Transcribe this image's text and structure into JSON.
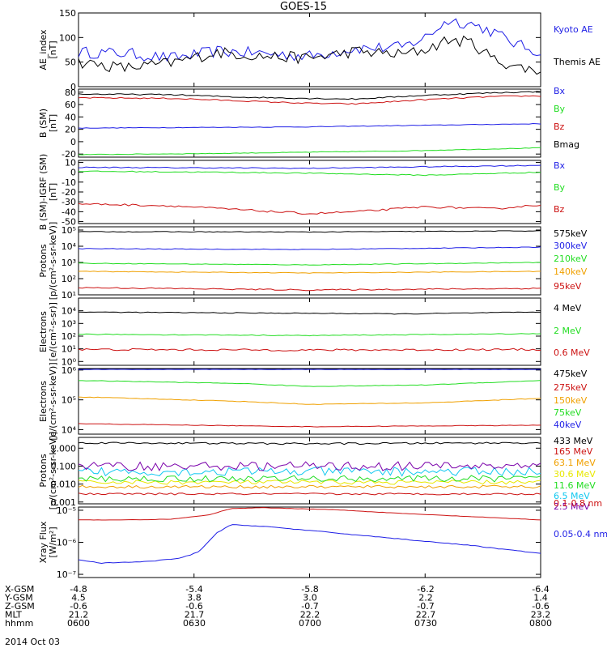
{
  "title": "GOES-15",
  "date_label": "2014 Oct 03",
  "colors": {
    "black": "#000000",
    "blue": "#1e1ee6",
    "green": "#22dd22",
    "red": "#cc1111",
    "orange": "#f0a000",
    "cyan": "#10c8f0",
    "yellow": "#e8e800",
    "purple": "#7a00aa",
    "magenta": "#c000c0",
    "darkred": "#990000"
  },
  "footer": {
    "rows": [
      {
        "label": "X-GSM",
        "values": [
          "-4.8",
          "-5.4",
          "-5.8",
          "-6.2",
          "-6.4"
        ]
      },
      {
        "label": "Y-GSM",
        "values": [
          "4.5",
          "3.8",
          "3.0",
          "2.2",
          "1.4"
        ]
      },
      {
        "label": "Z-GSM",
        "values": [
          "-0.6",
          "-0.6",
          "-0.7",
          "-0.7",
          "-0.6"
        ]
      },
      {
        "label": "MLT",
        "values": [
          "21.2",
          "21.7",
          "22.2",
          "22.7",
          "23.2"
        ]
      },
      {
        "label": "hhmm",
        "values": [
          "0600",
          "0630",
          "0700",
          "0730",
          "0800"
        ]
      }
    ]
  },
  "chart_data": [
    {
      "type": "line",
      "ylabel": "AE_index\n[nT]",
      "ylim": [
        0,
        150
      ],
      "yscale": "linear",
      "yticks": [
        {
          "v": 0,
          "t": "0"
        },
        {
          "v": 50,
          "t": "50"
        },
        {
          "v": 100,
          "t": "100"
        },
        {
          "v": 150,
          "t": "150"
        }
      ],
      "series": [
        {
          "name": "Kyoto AE",
          "color": "#1e1ee6",
          "noise": 12,
          "points": [
            [
              0,
              70
            ],
            [
              0.1,
              68
            ],
            [
              0.2,
              58
            ],
            [
              0.3,
              72
            ],
            [
              0.4,
              68
            ],
            [
              0.5,
              62
            ],
            [
              0.6,
              78
            ],
            [
              0.7,
              80
            ],
            [
              0.75,
              100
            ],
            [
              0.8,
              135
            ],
            [
              0.85,
              128
            ],
            [
              0.9,
              110
            ],
            [
              0.95,
              85
            ],
            [
              1,
              70
            ]
          ]
        },
        {
          "name": "Themis AE",
          "color": "#000000",
          "noise": 12,
          "points": [
            [
              0,
              50
            ],
            [
              0.1,
              38
            ],
            [
              0.2,
              48
            ],
            [
              0.3,
              70
            ],
            [
              0.4,
              62
            ],
            [
              0.5,
              58
            ],
            [
              0.6,
              72
            ],
            [
              0.7,
              65
            ],
            [
              0.75,
              75
            ],
            [
              0.8,
              95
            ],
            [
              0.85,
              90
            ],
            [
              0.9,
              55
            ],
            [
              0.95,
              40
            ],
            [
              1,
              32
            ]
          ]
        }
      ]
    },
    {
      "type": "line",
      "ylabel": "B (SM)\n[nT]",
      "ylim": [
        -25,
        85
      ],
      "yscale": "linear",
      "yticks": [
        {
          "v": -20,
          "t": "-20"
        },
        {
          "v": 0,
          "t": "0"
        },
        {
          "v": 20,
          "t": "20"
        },
        {
          "v": 40,
          "t": "40"
        },
        {
          "v": 60,
          "t": "60"
        },
        {
          "v": 80,
          "t": "80"
        }
      ],
      "series": [
        {
          "name": "Bx",
          "color": "#1e1ee6",
          "noise": 0.5,
          "points": [
            [
              0,
              22
            ],
            [
              0.5,
              24
            ],
            [
              1,
              29
            ]
          ]
        },
        {
          "name": "By",
          "color": "#22dd22",
          "noise": 0.5,
          "points": [
            [
              0,
              -21
            ],
            [
              0.3,
              -19
            ],
            [
              0.5,
              -17
            ],
            [
              0.7,
              -15
            ],
            [
              1,
              -10
            ]
          ]
        },
        {
          "name": "Bz",
          "color": "#cc1111",
          "noise": 1,
          "points": [
            [
              0,
              71
            ],
            [
              0.2,
              70
            ],
            [
              0.35,
              66
            ],
            [
              0.5,
              62
            ],
            [
              0.6,
              61
            ],
            [
              0.75,
              68
            ],
            [
              0.9,
              73
            ],
            [
              1,
              74
            ]
          ]
        },
        {
          "name": "Bmag",
          "color": "#000000",
          "noise": 1,
          "points": [
            [
              0,
              77
            ],
            [
              0.2,
              76
            ],
            [
              0.35,
              72
            ],
            [
              0.5,
              70
            ],
            [
              0.6,
              69
            ],
            [
              0.75,
              75
            ],
            [
              0.9,
              79
            ],
            [
              1,
              81
            ]
          ]
        }
      ]
    },
    {
      "type": "line",
      "ylabel": "B (SM)-IGRF (SM)\n[nT]",
      "ylim": [
        -52,
        12
      ],
      "yscale": "linear",
      "yticks": [
        {
          "v": -50,
          "t": "-50"
        },
        {
          "v": -40,
          "t": "-40"
        },
        {
          "v": -30,
          "t": "-30"
        },
        {
          "v": -20,
          "t": "-20"
        },
        {
          "v": -10,
          "t": "-10"
        },
        {
          "v": 0,
          "t": "0"
        },
        {
          "v": 10,
          "t": "10"
        }
      ],
      "series": [
        {
          "name": "Bx",
          "color": "#1e1ee6",
          "noise": 0.5,
          "points": [
            [
              0,
              5
            ],
            [
              0.5,
              4
            ],
            [
              1,
              7
            ]
          ]
        },
        {
          "name": "By",
          "color": "#22dd22",
          "noise": 0.5,
          "points": [
            [
              0,
              1
            ],
            [
              0.3,
              0
            ],
            [
              0.5,
              -1
            ],
            [
              0.75,
              -3
            ],
            [
              1,
              0
            ]
          ]
        },
        {
          "name": "Bz",
          "color": "#cc1111",
          "noise": 1,
          "points": [
            [
              0,
              -32
            ],
            [
              0.2,
              -34
            ],
            [
              0.35,
              -38
            ],
            [
              0.5,
              -42
            ],
            [
              0.6,
              -40
            ],
            [
              0.75,
              -35
            ],
            [
              0.9,
              -37
            ],
            [
              1,
              -33
            ]
          ]
        }
      ]
    },
    {
      "type": "line",
      "ylabel": "Protons\n[p/(cm²-s-sr-keV)]",
      "ylim": [
        1,
        5.2
      ],
      "yscale": "log10",
      "yticks": [
        {
          "v": 1,
          "t": "10¹"
        },
        {
          "v": 2,
          "t": "10²"
        },
        {
          "v": 3,
          "t": "10³"
        },
        {
          "v": 4,
          "t": "10⁴"
        },
        {
          "v": 5,
          "t": "10⁵"
        }
      ],
      "series": [
        {
          "name": "575keV",
          "color": "#000000",
          "noise": 0.02,
          "points": [
            [
              0,
              4.9
            ],
            [
              0.5,
              4.88
            ],
            [
              1,
              4.95
            ]
          ]
        },
        {
          "name": "300keV",
          "color": "#1e1ee6",
          "noise": 0.02,
          "points": [
            [
              0,
              3.85
            ],
            [
              0.5,
              3.8
            ],
            [
              1,
              3.95
            ]
          ]
        },
        {
          "name": "210keV",
          "color": "#22dd22",
          "noise": 0.02,
          "points": [
            [
              0,
              2.95
            ],
            [
              0.5,
              2.85
            ],
            [
              1,
              3.0
            ]
          ]
        },
        {
          "name": "140keV",
          "color": "#f0a000",
          "noise": 0.02,
          "points": [
            [
              0,
              2.45
            ],
            [
              0.5,
              2.35
            ],
            [
              1,
              2.45
            ]
          ]
        },
        {
          "name": "95keV",
          "color": "#cc1111",
          "noise": 0.04,
          "points": [
            [
              0,
              1.45
            ],
            [
              0.5,
              1.3
            ],
            [
              1,
              1.4
            ]
          ]
        }
      ]
    },
    {
      "type": "line",
      "ylabel": "Electrons\n[e/(cm²-s-sr)]",
      "ylim": [
        -0.3,
        5
      ],
      "yscale": "log10",
      "yticks": [
        {
          "v": 0,
          "t": "10⁰"
        },
        {
          "v": 1,
          "t": "10¹"
        },
        {
          "v": 2,
          "t": "10²"
        },
        {
          "v": 3,
          "t": "10³"
        },
        {
          "v": 4,
          "t": "10⁴"
        }
      ],
      "series": [
        {
          "name": "4 MeV",
          "color": "#000000",
          "noise": 0.03,
          "points": [
            [
              0,
              3.9
            ],
            [
              0.5,
              3.8
            ],
            [
              0.7,
              3.75
            ],
            [
              1,
              3.9
            ]
          ]
        },
        {
          "name": "2 MeV",
          "color": "#22dd22",
          "noise": 0.03,
          "points": [
            [
              0,
              2.15
            ],
            [
              0.5,
              2.05
            ],
            [
              1,
              2.2
            ]
          ]
        },
        {
          "name": "0.6 MeV",
          "color": "#cc1111",
          "noise": 0.08,
          "points": [
            [
              0,
              0.95
            ],
            [
              0.5,
              0.9
            ],
            [
              1,
              0.95
            ]
          ]
        }
      ]
    },
    {
      "type": "line",
      "ylabel": "Electrons\n[e/(cm²-s-sr-keV)]",
      "ylim": [
        3.85,
        6.05
      ],
      "yscale": "log10",
      "yticks": [
        {
          "v": 4,
          "t": "10⁴"
        },
        {
          "v": 5,
          "t": "10⁵"
        },
        {
          "v": 6,
          "t": "10⁶"
        }
      ],
      "series": [
        {
          "name": "475keV",
          "color": "#000000",
          "noise": 0.005,
          "points": [
            [
              0,
              6.03
            ],
            [
              1,
              6.03
            ]
          ]
        },
        {
          "name": "275keV",
          "color": "#cc1111",
          "noise": 0.01,
          "points": [
            [
              0,
              4.2
            ],
            [
              0.5,
              4.1
            ],
            [
              1,
              4.15
            ]
          ]
        },
        {
          "name": "150keV",
          "color": "#f0a000",
          "noise": 0.01,
          "points": [
            [
              0,
              5.1
            ],
            [
              0.35,
              4.95
            ],
            [
              0.5,
              4.85
            ],
            [
              0.75,
              4.9
            ],
            [
              1,
              5.05
            ]
          ]
        },
        {
          "name": "75keV",
          "color": "#22dd22",
          "noise": 0.01,
          "points": [
            [
              0,
              5.65
            ],
            [
              0.35,
              5.55
            ],
            [
              0.5,
              5.45
            ],
            [
              0.75,
              5.5
            ],
            [
              1,
              5.65
            ]
          ]
        },
        {
          "name": "40keV",
          "color": "#1e1ee6",
          "noise": 0.005,
          "points": [
            [
              0,
              6.02
            ],
            [
              1,
              6.02
            ]
          ]
        }
      ]
    },
    {
      "type": "line",
      "ylabel": "Protons\n[p/(cm²-s-sr-keV)]",
      "ylim": [
        -3.1,
        0.6
      ],
      "yscale": "log10",
      "yticks": [
        {
          "v": -3,
          "t": "0.001"
        },
        {
          "v": -2,
          "t": "0.010"
        },
        {
          "v": -1,
          "t": "0.100"
        },
        {
          "v": 0,
          "t": "1.000"
        }
      ],
      "series": [
        {
          "name": "433 MeV",
          "color": "#000000",
          "noise": 0.05,
          "points": [
            [
              0,
              0.3
            ],
            [
              0.5,
              0.25
            ],
            [
              1,
              0.3
            ]
          ]
        },
        {
          "name": "165 MeV",
          "color": "#cc1111",
          "noise": 0.05,
          "points": [
            [
              0,
              -2.55
            ],
            [
              1,
              -2.55
            ]
          ]
        },
        {
          "name": "63.1 MeV",
          "color": "#f0a000",
          "noise": 0.08,
          "points": [
            [
              0,
              -2.15
            ],
            [
              1,
              -2.15
            ]
          ]
        },
        {
          "name": "30.6 MeV",
          "color": "#e8e800",
          "noise": 0.12,
          "points": [
            [
              0,
              -1.9
            ],
            [
              1,
              -1.9
            ]
          ]
        },
        {
          "name": "11.6 MeV",
          "color": "#22dd22",
          "noise": 0.18,
          "points": [
            [
              0,
              -1.7
            ],
            [
              1,
              -1.7
            ]
          ]
        },
        {
          "name": "6.5 MeV",
          "color": "#10c8f0",
          "noise": 0.25,
          "points": [
            [
              0,
              -1.3
            ],
            [
              1,
              -1.3
            ]
          ]
        },
        {
          "name": "2.5 MeV",
          "color": "#7a00aa",
          "noise": 0.25,
          "points": [
            [
              0,
              -1.0
            ],
            [
              1,
              -1.0
            ]
          ]
        }
      ]
    },
    {
      "type": "line",
      "ylabel": "Xray Flux\n[W/m²]",
      "ylim": [
        -7.1,
        -4.9
      ],
      "yscale": "log10",
      "yticks": [
        {
          "v": -7,
          "t": "10⁻⁷"
        },
        {
          "v": -6,
          "t": "10⁻⁶"
        },
        {
          "v": -5,
          "t": "10⁻⁵"
        }
      ],
      "series": [
        {
          "name": "0.1-0.8 nm",
          "color": "#cc1111",
          "noise": 0.005,
          "points": [
            [
              0,
              -5.3
            ],
            [
              0.1,
              -5.3
            ],
            [
              0.2,
              -5.28
            ],
            [
              0.28,
              -5.15
            ],
            [
              0.33,
              -4.95
            ],
            [
              0.4,
              -4.92
            ],
            [
              0.55,
              -4.98
            ],
            [
              0.7,
              -5.1
            ],
            [
              0.85,
              -5.2
            ],
            [
              1,
              -5.3
            ]
          ]
        },
        {
          "name": "0.05-0.4 nm",
          "color": "#1e1ee6",
          "noise": 0.01,
          "points": [
            [
              0,
              -6.55
            ],
            [
              0.05,
              -6.65
            ],
            [
              0.15,
              -6.6
            ],
            [
              0.22,
              -6.5
            ],
            [
              0.26,
              -6.3
            ],
            [
              0.3,
              -5.7
            ],
            [
              0.33,
              -5.45
            ],
            [
              0.4,
              -5.5
            ],
            [
              0.55,
              -5.7
            ],
            [
              0.7,
              -5.9
            ],
            [
              0.85,
              -6.1
            ],
            [
              1,
              -6.35
            ]
          ]
        }
      ]
    }
  ]
}
